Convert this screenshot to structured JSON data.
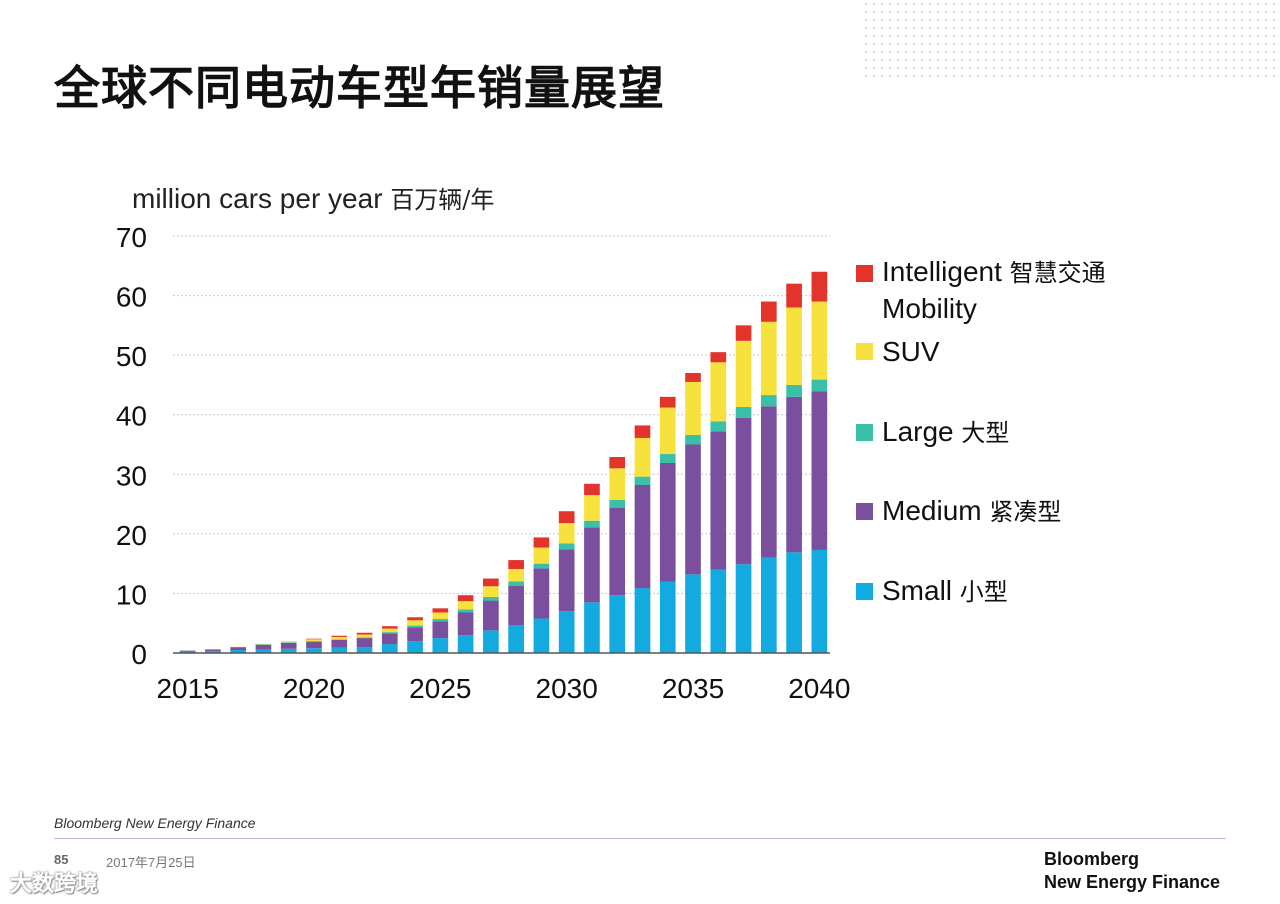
{
  "title": "全球不同电动车型年销量展望",
  "unit_label": {
    "en": "million cars per year",
    "cn": "百万辆/年"
  },
  "chart_data": {
    "type": "bar",
    "stacked": true,
    "x": [
      2015,
      2016,
      2017,
      2018,
      2019,
      2020,
      2021,
      2022,
      2023,
      2024,
      2025,
      2026,
      2027,
      2028,
      2029,
      2030,
      2031,
      2032,
      2033,
      2034,
      2035,
      2036,
      2037,
      2038,
      2039,
      2040
    ],
    "x_tick_labels": [
      "2015",
      "2020",
      "2025",
      "2030",
      "2035",
      "2040"
    ],
    "ylim": [
      0,
      70
    ],
    "y_ticks": [
      0,
      10,
      20,
      30,
      40,
      50,
      60,
      70
    ],
    "grid": true,
    "legend_position": "right",
    "series": [
      {
        "name": "Small",
        "name_cn": "小型",
        "color": "#12aadf",
        "values": [
          0.2,
          0.3,
          0.5,
          0.6,
          0.7,
          0.8,
          0.9,
          1.0,
          1.5,
          2.0,
          2.5,
          3.0,
          3.8,
          4.7,
          5.8,
          7.0,
          8.5,
          9.7,
          10.9,
          12.0,
          13.2,
          14.0,
          14.9,
          16.0,
          16.9,
          17.3
        ]
      },
      {
        "name": "Medium",
        "name_cn": "紧凑型",
        "color": "#7a4f9e",
        "values": [
          0.2,
          0.3,
          0.5,
          0.8,
          1.0,
          1.1,
          1.3,
          1.5,
          1.8,
          2.3,
          2.8,
          3.8,
          5.0,
          6.6,
          8.4,
          10.4,
          12.6,
          14.7,
          17.3,
          19.9,
          21.8,
          23.2,
          24.6,
          25.4,
          26.1,
          26.6
        ]
      },
      {
        "name": "Large",
        "name_cn": "大型",
        "color": "#3cbfa8",
        "values": [
          0,
          0,
          0,
          0.05,
          0.1,
          0.1,
          0.1,
          0.1,
          0.2,
          0.3,
          0.4,
          0.5,
          0.6,
          0.7,
          0.8,
          1.0,
          1.1,
          1.3,
          1.4,
          1.5,
          1.6,
          1.7,
          1.8,
          1.9,
          2.0,
          2.0
        ]
      },
      {
        "name": "SUV",
        "name_cn": "",
        "color": "#f7e13c",
        "values": [
          0,
          0,
          0.05,
          0.1,
          0.2,
          0.3,
          0.4,
          0.5,
          0.6,
          0.9,
          1.1,
          1.4,
          1.8,
          2.1,
          2.7,
          3.4,
          4.3,
          5.3,
          6.5,
          7.8,
          8.9,
          9.9,
          11.1,
          12.3,
          13.0,
          13.1
        ]
      },
      {
        "name": "Intelligent Mobility",
        "name_cn": "智慧交通",
        "color": "#e3342c",
        "values": [
          0,
          0,
          0,
          0,
          0,
          0.1,
          0.2,
          0.3,
          0.4,
          0.5,
          0.7,
          1.0,
          1.3,
          1.5,
          1.7,
          2.0,
          1.9,
          1.9,
          2.1,
          1.8,
          1.5,
          1.7,
          2.6,
          3.4,
          4.0,
          5.0
        ]
      }
    ]
  },
  "legend": [
    {
      "en": "Intelligent",
      "cn": "智慧交通",
      "en2": "Mobility",
      "color": "#e3342c"
    },
    {
      "en": "SUV",
      "cn": "",
      "color": "#f7e13c"
    },
    {
      "en": "Large",
      "cn": "大型",
      "color": "#3cbfa8"
    },
    {
      "en": "Medium",
      "cn": "紧凑型",
      "color": "#7a4f9e"
    },
    {
      "en": "Small",
      "cn": "小型",
      "color": "#12aadf"
    }
  ],
  "footer": {
    "source": "Bloomberg New Energy Finance",
    "page_number": "85",
    "date": "2017年7月25日",
    "brand_line1": "Bloomberg",
    "brand_line2": "New Energy Finance"
  },
  "watermark": "大数跨境"
}
